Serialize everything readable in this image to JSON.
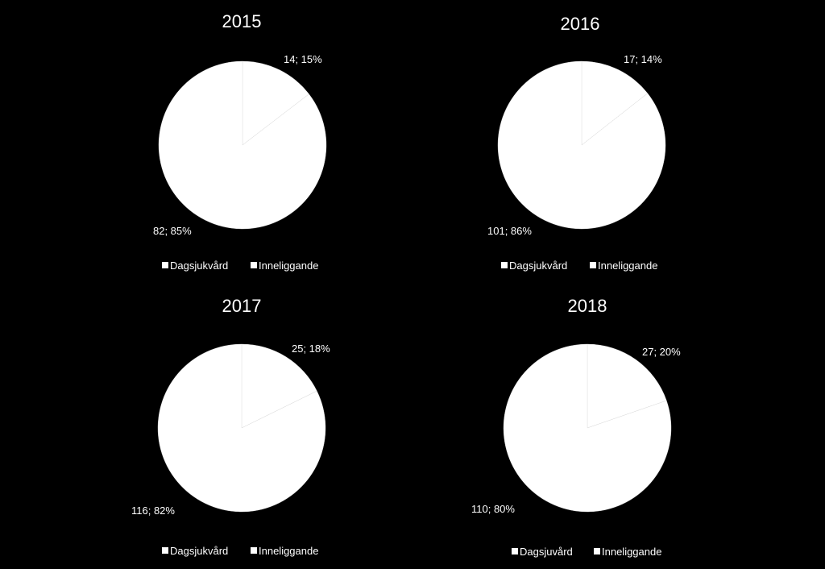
{
  "colors": {
    "background": "#000000",
    "slice_fill": "#ffffff",
    "slice_edge": "#d9d9d9",
    "text": "#ffffff"
  },
  "chart_data": [
    {
      "type": "pie",
      "title": "2015",
      "categories": [
        "Dagsjukvård",
        "Inneliggande"
      ],
      "values": [
        82,
        14
      ],
      "percentages": [
        85,
        15
      ],
      "data_labels": [
        "82; 85%",
        "14; 15%"
      ],
      "legend": {
        "position": "bottom",
        "entries": [
          "Dagsjukvård",
          "Inneliggande"
        ]
      }
    },
    {
      "type": "pie",
      "title": "2016",
      "categories": [
        "Dagsjukvård",
        "Inneliggande"
      ],
      "values": [
        101,
        17
      ],
      "percentages": [
        86,
        14
      ],
      "data_labels": [
        "101; 86%",
        "17; 14%"
      ],
      "legend": {
        "position": "bottom",
        "entries": [
          "Dagsjukvård",
          "Inneliggande"
        ]
      }
    },
    {
      "type": "pie",
      "title": "2017",
      "categories": [
        "Dagsjukvård",
        "Inneliggande"
      ],
      "values": [
        116,
        25
      ],
      "percentages": [
        82,
        18
      ],
      "data_labels": [
        "116; 82%",
        "25; 18%"
      ],
      "legend": {
        "position": "bottom",
        "entries": [
          "Dagsjukvård",
          "Inneliggande"
        ]
      }
    },
    {
      "type": "pie",
      "title": "2018",
      "categories": [
        "Dagsjuvård",
        "Inneliggande"
      ],
      "values": [
        110,
        27
      ],
      "percentages": [
        80,
        20
      ],
      "data_labels": [
        "110; 80%",
        "27; 20%"
      ],
      "legend": {
        "position": "bottom",
        "entries": [
          "Dagsjuvård",
          "Inneliggande"
        ]
      }
    }
  ]
}
